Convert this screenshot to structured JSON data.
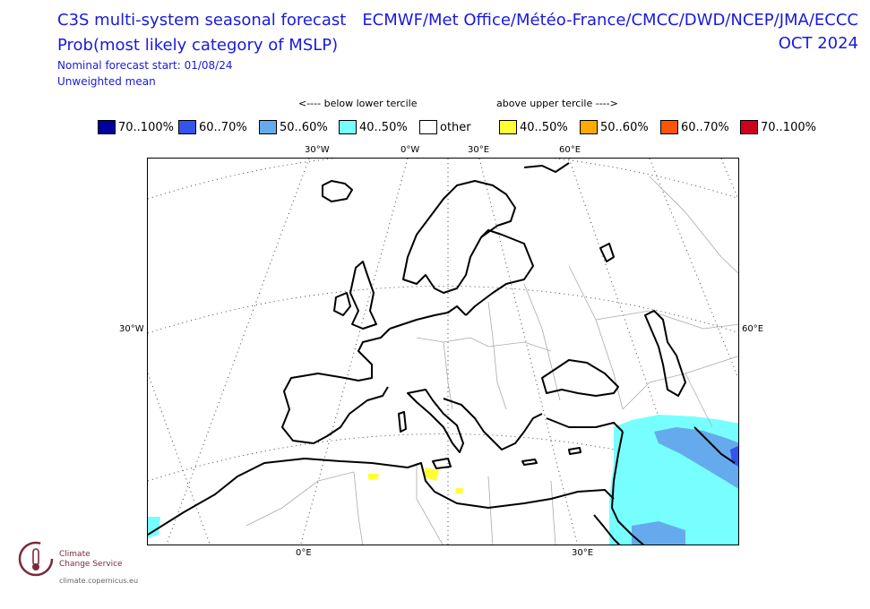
{
  "header": {
    "title_line1": "C3S multi-system seasonal forecast",
    "title_line2": "Prob(most likely category of MSLP)",
    "forecast_start": "Nominal forecast start: 01/08/24",
    "mean_type": "Unweighted mean",
    "systems": "ECMWF/Met Office/Météo-France/CMCC/DWD/NCEP/JMA/ECCC",
    "valid_month": "OCT 2024"
  },
  "legend": {
    "below_label": "<---- below lower tercile",
    "above_label": "above upper tercile ---->",
    "items": [
      {
        "label": "70..100%",
        "color": "#00009f"
      },
      {
        "label": "60..70%",
        "color": "#3355ee"
      },
      {
        "label": "50..60%",
        "color": "#66aaee"
      },
      {
        "label": "40..50%",
        "color": "#77ffff"
      },
      {
        "label": "other",
        "color": "#ffffff"
      },
      {
        "label": "40..50%",
        "color": "#ffff33"
      },
      {
        "label": "50..60%",
        "color": "#ffaa00"
      },
      {
        "label": "60..70%",
        "color": "#ff5500"
      },
      {
        "label": "70..100%",
        "color": "#cc0022"
      }
    ]
  },
  "map": {
    "top_ticks": [
      "30°W",
      "0°W",
      "30°E",
      "60°E"
    ],
    "left_tick": "30°W",
    "right_tick": "60°E",
    "bottom_ticks": [
      "0°E",
      "30°E"
    ]
  },
  "logo": {
    "line1": "Climate",
    "line2": "Change Service",
    "url": "climate.copernicus.eu",
    "color": "#7a2a3a"
  }
}
